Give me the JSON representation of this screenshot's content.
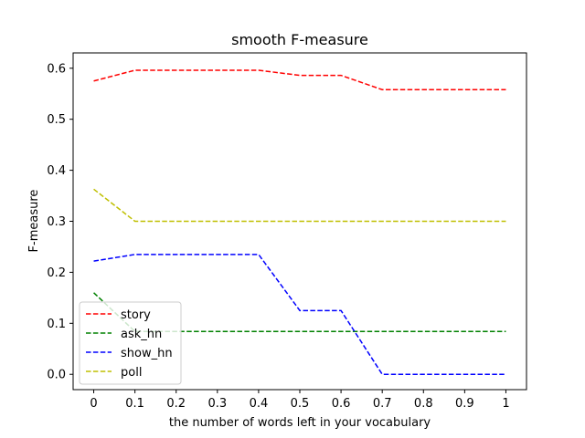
{
  "chart_data": {
    "type": "line",
    "title": "smooth F-measure",
    "xlabel": "the number of words left in your vocabulary",
    "ylabel": "F-measure",
    "xlim": [
      -0.05,
      1.05
    ],
    "ylim": [
      -0.03,
      0.63
    ],
    "xticks": [
      0,
      0.1,
      0.2,
      0.3,
      0.4,
      0.5,
      0.6,
      0.7,
      0.8,
      0.9,
      1
    ],
    "xtick_labels": [
      "0",
      "0.1",
      "0.2",
      "0.3",
      "0.4",
      "0.5",
      "0.6",
      "0.7",
      "0.8",
      "0.9",
      "1"
    ],
    "yticks": [
      0,
      0.1,
      0.2,
      0.3,
      0.4,
      0.5,
      0.6
    ],
    "ytick_labels": [
      "0.0",
      "0.1",
      "0.2",
      "0.3",
      "0.4",
      "0.5",
      "0.6"
    ],
    "grid": false,
    "legend_position": "lower-left",
    "line_style": "dashed",
    "x": [
      0,
      0.1,
      0.2,
      0.3,
      0.4,
      0.5,
      0.6,
      0.7,
      0.8,
      0.9,
      1
    ],
    "series": [
      {
        "name": "story",
        "color": "#ff0000",
        "values": [
          0.575,
          0.596,
          0.596,
          0.596,
          0.596,
          0.586,
          0.586,
          0.558,
          0.558,
          0.558,
          0.558
        ]
      },
      {
        "name": "ask_hn",
        "color": "#008000",
        "values": [
          0.16,
          0.084,
          0.084,
          0.084,
          0.084,
          0.084,
          0.084,
          0.084,
          0.084,
          0.084,
          0.084
        ]
      },
      {
        "name": "show_hn",
        "color": "#0000ff",
        "values": [
          0.222,
          0.235,
          0.235,
          0.235,
          0.235,
          0.125,
          0.125,
          0.0,
          0.0,
          0.0,
          0.0
        ]
      },
      {
        "name": "poll",
        "color": "#bfbf00",
        "values": [
          0.363,
          0.3,
          0.3,
          0.3,
          0.3,
          0.3,
          0.3,
          0.3,
          0.3,
          0.3,
          0.3
        ]
      }
    ]
  }
}
